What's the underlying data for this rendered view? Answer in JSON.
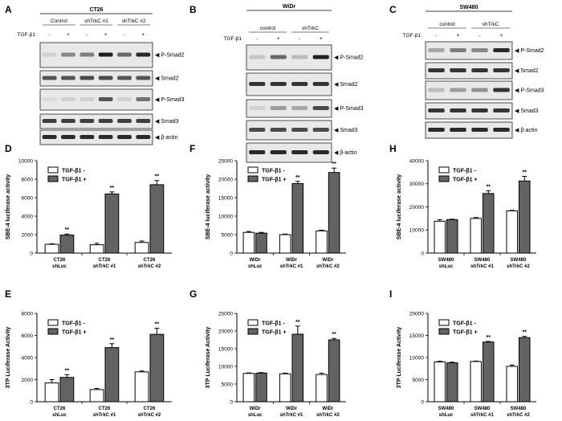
{
  "blots": [
    {
      "id": "A",
      "cell_line": "CT26",
      "lane_count": 6,
      "groups": [
        {
          "label": "Control",
          "lanes": [
            0,
            1
          ]
        },
        {
          "label": "shTrkC #1",
          "lanes": [
            2,
            3
          ]
        },
        {
          "label": "shTrkC #2",
          "lanes": [
            4,
            5
          ]
        }
      ],
      "treatment_label": "TGF-β1",
      "lane_signs": [
        "-",
        "+",
        "-",
        "+",
        "-",
        "+"
      ],
      "bands": [
        {
          "label": "P-Smad2",
          "intensities": [
            0.1,
            0.45,
            0.5,
            0.95,
            0.6,
            0.9
          ]
        },
        {
          "label": "Smad2",
          "intensities": [
            0.7,
            0.7,
            0.75,
            0.75,
            0.7,
            0.7
          ]
        },
        {
          "label": "P-Smad3",
          "intensities": [
            0.05,
            0.1,
            0.1,
            0.7,
            0.1,
            0.55
          ]
        },
        {
          "label": "Smad3",
          "intensities": [
            0.8,
            0.8,
            0.8,
            0.8,
            0.8,
            0.8
          ]
        },
        {
          "label": "β-actin",
          "intensities": [
            0.9,
            0.9,
            0.9,
            0.9,
            0.9,
            0.9
          ]
        }
      ]
    },
    {
      "id": "B",
      "cell_line": "WiDr",
      "lane_count": 4,
      "groups": [
        {
          "label": "control",
          "lanes": [
            0,
            1
          ]
        },
        {
          "label": "shTrkC",
          "lanes": [
            2,
            3
          ]
        }
      ],
      "treatment_label": "TGF-β1",
      "lane_signs": [
        "-",
        "+",
        "-",
        "+"
      ],
      "bands": [
        {
          "label": "P-Smad2",
          "intensities": [
            0.15,
            0.6,
            0.2,
            0.95
          ]
        },
        {
          "label": "Smad2",
          "intensities": [
            0.85,
            0.85,
            0.85,
            0.85
          ]
        },
        {
          "label": "P-Smad3",
          "intensities": [
            0.1,
            0.35,
            0.3,
            0.75
          ]
        },
        {
          "label": "Smad3",
          "intensities": [
            0.75,
            0.75,
            0.75,
            0.75
          ]
        },
        {
          "label": "β-actin",
          "intensities": [
            0.9,
            0.9,
            0.9,
            0.9
          ]
        }
      ]
    },
    {
      "id": "C",
      "cell_line": "SW480",
      "lane_count": 4,
      "groups": [
        {
          "label": "control",
          "lanes": [
            0,
            1
          ]
        },
        {
          "label": "shTrkC",
          "lanes": [
            2,
            3
          ]
        }
      ],
      "treatment_label": "TGF-β1",
      "lane_signs": [
        "-",
        "+",
        "-",
        "+"
      ],
      "bands": [
        {
          "label": "P-Smad2",
          "intensities": [
            0.3,
            0.5,
            0.45,
            0.9
          ]
        },
        {
          "label": "Smad2",
          "intensities": [
            0.85,
            0.85,
            0.85,
            0.85
          ]
        },
        {
          "label": "P-Smad3",
          "intensities": [
            0.2,
            0.35,
            0.4,
            0.85
          ]
        },
        {
          "label": "Smad3",
          "intensities": [
            0.85,
            0.85,
            0.85,
            0.85
          ]
        },
        {
          "label": "β-actin",
          "intensities": [
            0.9,
            0.9,
            0.9,
            0.9
          ]
        }
      ]
    }
  ],
  "chart_data": [
    {
      "id": "D",
      "type": "bar",
      "ylabel": "SBE-4 luciferase activity",
      "ylim": [
        0,
        10000
      ],
      "yticks": [
        0,
        2000,
        4000,
        6000,
        8000,
        10000
      ],
      "categories": [
        [
          "CT26",
          "shLuc"
        ],
        [
          "CT26",
          "shTrkC #1"
        ],
        [
          "CT26",
          "shTrkC #2"
        ]
      ],
      "series": [
        {
          "name": "TGF-β1 -",
          "color": "#ffffff",
          "values": [
            950,
            900,
            1150
          ],
          "errors": [
            60,
            150,
            150
          ]
        },
        {
          "name": "TGF-β1 +",
          "color": "#636363",
          "values": [
            1950,
            6400,
            7400
          ],
          "errors": [
            120,
            220,
            450
          ]
        }
      ],
      "significance": [
        "**",
        "**",
        "**"
      ]
    },
    {
      "id": "F",
      "type": "bar",
      "ylabel": "SBE-4 luciferase activity",
      "ylim": [
        0,
        25000
      ],
      "yticks": [
        0,
        5000,
        10000,
        15000,
        20000,
        25000
      ],
      "categories": [
        [
          "WiDr",
          "shLuc"
        ],
        [
          "WiDr",
          "shTrkC #1"
        ],
        [
          "WiDr",
          "shTrkC #2"
        ]
      ],
      "series": [
        {
          "name": "TGF-β1 -",
          "color": "#ffffff",
          "values": [
            5600,
            5000,
            6000
          ],
          "errors": [
            250,
            150,
            200
          ]
        },
        {
          "name": "TGF-β1 +",
          "color": "#636363",
          "values": [
            5400,
            18800,
            21800
          ],
          "errors": [
            200,
            600,
            1200
          ]
        }
      ],
      "significance": [
        "",
        "**",
        "**"
      ]
    },
    {
      "id": "H",
      "type": "bar",
      "ylabel": "SBE-4 luciferase activity",
      "ylim": [
        0,
        40000
      ],
      "yticks": [
        0,
        10000,
        20000,
        30000,
        40000
      ],
      "categories": [
        [
          "SW480",
          "shLuc"
        ],
        [
          "SW480",
          "shTrkC #1"
        ],
        [
          "SW480",
          "shTrkC #2"
        ]
      ],
      "series": [
        {
          "name": "TGF-β1 -",
          "color": "#ffffff",
          "values": [
            13800,
            15000,
            18300
          ],
          "errors": [
            700,
            400,
            200
          ]
        },
        {
          "name": "TGF-β1 +",
          "color": "#636363",
          "values": [
            14500,
            25800,
            31200
          ],
          "errors": [
            200,
            1200,
            2000
          ]
        }
      ],
      "significance": [
        "",
        "**",
        "**"
      ]
    },
    {
      "id": "E",
      "type": "bar",
      "ylabel": "3TP Luciferase Activity",
      "ylim": [
        0,
        8000
      ],
      "yticks": [
        0,
        2000,
        4000,
        6000,
        8000
      ],
      "categories": [
        [
          "CT26",
          "shLuc"
        ],
        [
          "CT26",
          "shTrkC #1"
        ],
        [
          "CT26",
          "shTrkC #2"
        ]
      ],
      "series": [
        {
          "name": "TGF-β1 -",
          "color": "#ffffff",
          "values": [
            1700,
            1100,
            2700
          ],
          "errors": [
            300,
            100,
            80
          ]
        },
        {
          "name": "TGF-β1 +",
          "color": "#636363",
          "values": [
            2200,
            4900,
            6100
          ],
          "errors": [
            250,
            350,
            550
          ]
        }
      ],
      "significance": [
        "**",
        "**",
        "**"
      ]
    },
    {
      "id": "G",
      "type": "bar",
      "ylabel": "3TP Luciferase Activity",
      "ylim": [
        0,
        25000
      ],
      "yticks": [
        0,
        5000,
        10000,
        15000,
        20000,
        25000
      ],
      "categories": [
        [
          "WiDr",
          "shLuc"
        ],
        [
          "WiDr",
          "shTrkC #1"
        ],
        [
          "WiDr",
          "shTrkC #2"
        ]
      ],
      "series": [
        {
          "name": "TGF-β1 -",
          "color": "#ffffff",
          "values": [
            8000,
            7900,
            7700
          ],
          "errors": [
            150,
            200,
            400
          ]
        },
        {
          "name": "TGF-β1 +",
          "color": "#636363",
          "values": [
            8100,
            19100,
            17500
          ],
          "errors": [
            150,
            2300,
            400
          ]
        }
      ],
      "significance": [
        "",
        "**",
        "**"
      ]
    },
    {
      "id": "I",
      "type": "bar",
      "ylabel": "3TP Luciferase Activity",
      "ylim": [
        0,
        20000
      ],
      "yticks": [
        0,
        5000,
        10000,
        15000,
        20000
      ],
      "categories": [
        [
          "SW480",
          "shLuc"
        ],
        [
          "SW480",
          "shTrkC #1"
        ],
        [
          "SW480",
          "shTrkC #2"
        ]
      ],
      "series": [
        {
          "name": "TGF-β1 -",
          "color": "#ffffff",
          "values": [
            9000,
            9100,
            8000
          ],
          "errors": [
            150,
            100,
            300
          ]
        },
        {
          "name": "TGF-β1 +",
          "color": "#636363",
          "values": [
            8800,
            13500,
            14500
          ],
          "errors": [
            150,
            150,
            300
          ]
        }
      ],
      "significance": [
        "",
        "**",
        "**"
      ]
    }
  ]
}
